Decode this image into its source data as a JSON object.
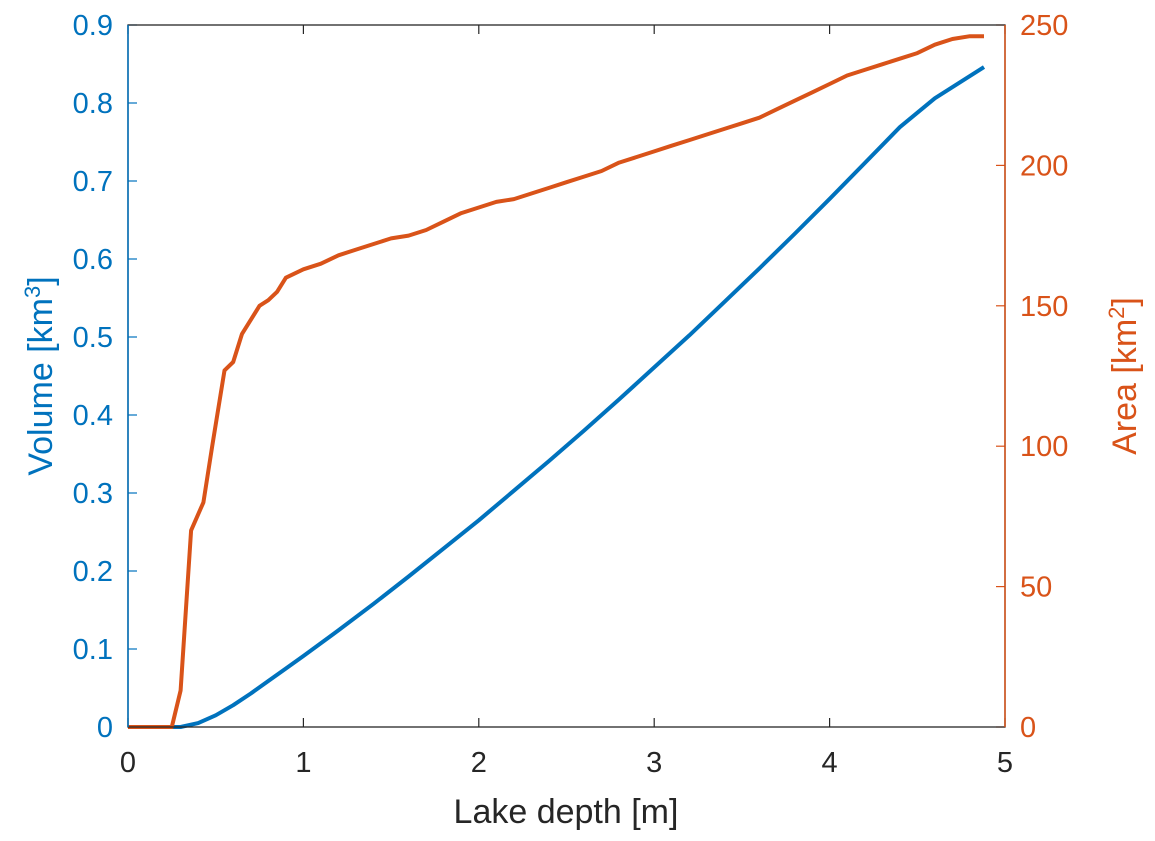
{
  "chart_data": {
    "type": "line",
    "xlabel": "Lake depth [m]",
    "ylabel_left": {
      "text": "Volume [km",
      "sup": "3",
      "close": "]"
    },
    "ylabel_right": {
      "text": "Area [km",
      "sup": "2",
      "close": "]"
    },
    "xlim": [
      0,
      5
    ],
    "ylim_left": [
      0,
      0.9
    ],
    "ylim_right": [
      0,
      250
    ],
    "x_ticks": [
      "0",
      "1",
      "2",
      "3",
      "4",
      "5"
    ],
    "y_left_ticks": [
      "0",
      "0.1",
      "0.2",
      "0.3",
      "0.4",
      "0.5",
      "0.6",
      "0.7",
      "0.8",
      "0.9"
    ],
    "y_right_ticks": [
      "0",
      "50",
      "100",
      "150",
      "200",
      "250"
    ],
    "grid": false,
    "colors": {
      "volume": "#0072BD",
      "area": "#D95319",
      "axes": "#262626"
    },
    "series": [
      {
        "axis": "left",
        "color": "#0072BD",
        "x": [
          0.0,
          0.3,
          0.4,
          0.5,
          0.6,
          0.7,
          0.8,
          0.9,
          1.0,
          1.2,
          1.4,
          1.6,
          1.8,
          2.0,
          2.2,
          2.4,
          2.6,
          2.8,
          3.0,
          3.2,
          3.4,
          3.6,
          3.8,
          4.0,
          4.2,
          4.4,
          4.6,
          4.88
        ],
        "y": [
          0.0,
          0.0,
          0.005,
          0.015,
          0.028,
          0.043,
          0.059,
          0.075,
          0.091,
          0.124,
          0.158,
          0.193,
          0.229,
          0.265,
          0.303,
          0.341,
          0.38,
          0.42,
          0.461,
          0.502,
          0.545,
          0.588,
          0.632,
          0.677,
          0.723,
          0.769,
          0.806,
          0.846
        ]
      },
      {
        "axis": "right",
        "color": "#D95319",
        "x": [
          0.0,
          0.25,
          0.3,
          0.36,
          0.43,
          0.48,
          0.55,
          0.6,
          0.65,
          0.7,
          0.75,
          0.8,
          0.85,
          0.9,
          1.0,
          1.1,
          1.2,
          1.3,
          1.4,
          1.5,
          1.6,
          1.7,
          1.8,
          1.9,
          2.0,
          2.1,
          2.2,
          2.3,
          2.4,
          2.5,
          2.6,
          2.7,
          2.8,
          2.9,
          3.0,
          3.1,
          3.2,
          3.3,
          3.4,
          3.5,
          3.6,
          3.7,
          3.8,
          3.9,
          4.0,
          4.1,
          4.2,
          4.3,
          4.4,
          4.5,
          4.6,
          4.7,
          4.8,
          4.88
        ],
        "y": [
          0,
          0,
          13,
          70,
          80,
          100,
          127,
          130,
          140,
          145,
          150,
          152,
          155,
          160,
          163,
          165,
          168,
          170,
          172,
          174,
          175,
          177,
          180,
          183,
          185,
          187,
          188,
          190,
          192,
          194,
          196,
          198,
          201,
          203,
          205,
          207,
          209,
          211,
          213,
          215,
          217,
          220,
          223,
          226,
          229,
          232,
          234,
          236,
          238,
          240,
          243,
          245,
          246,
          246
        ]
      }
    ]
  }
}
